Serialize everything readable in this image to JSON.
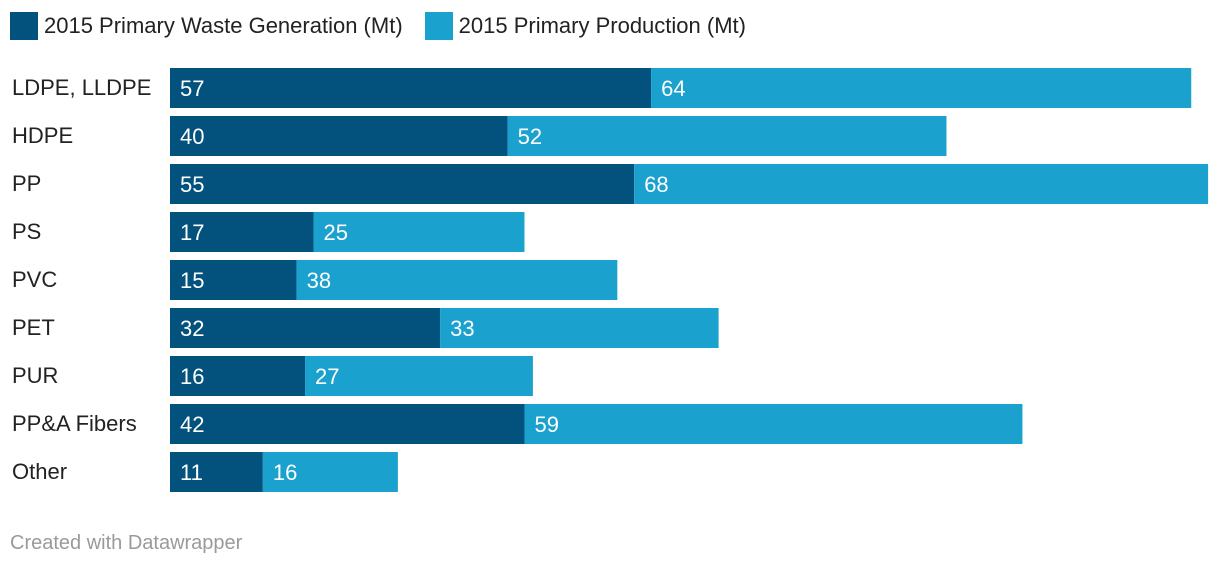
{
  "chart_data": {
    "type": "bar",
    "orientation": "horizontal",
    "stacked": true,
    "categories": [
      "LDPE, LLDPE",
      "HDPE",
      "PP",
      "PS",
      "PVC",
      "PET",
      "PUR",
      "PP&A Fibers",
      "Other"
    ],
    "series": [
      {
        "name": "2015 Primary Waste Generation (Mt)",
        "color": "#03517d",
        "values": [
          57,
          40,
          55,
          17,
          15,
          32,
          16,
          42,
          11
        ]
      },
      {
        "name": "2015 Primary Production (Mt)",
        "color": "#1aa1ce",
        "values": [
          64,
          52,
          68,
          25,
          38,
          33,
          27,
          59,
          16
        ]
      }
    ],
    "legend_position": "top-left",
    "grid": false
  },
  "footer": "Created with Datawrapper"
}
